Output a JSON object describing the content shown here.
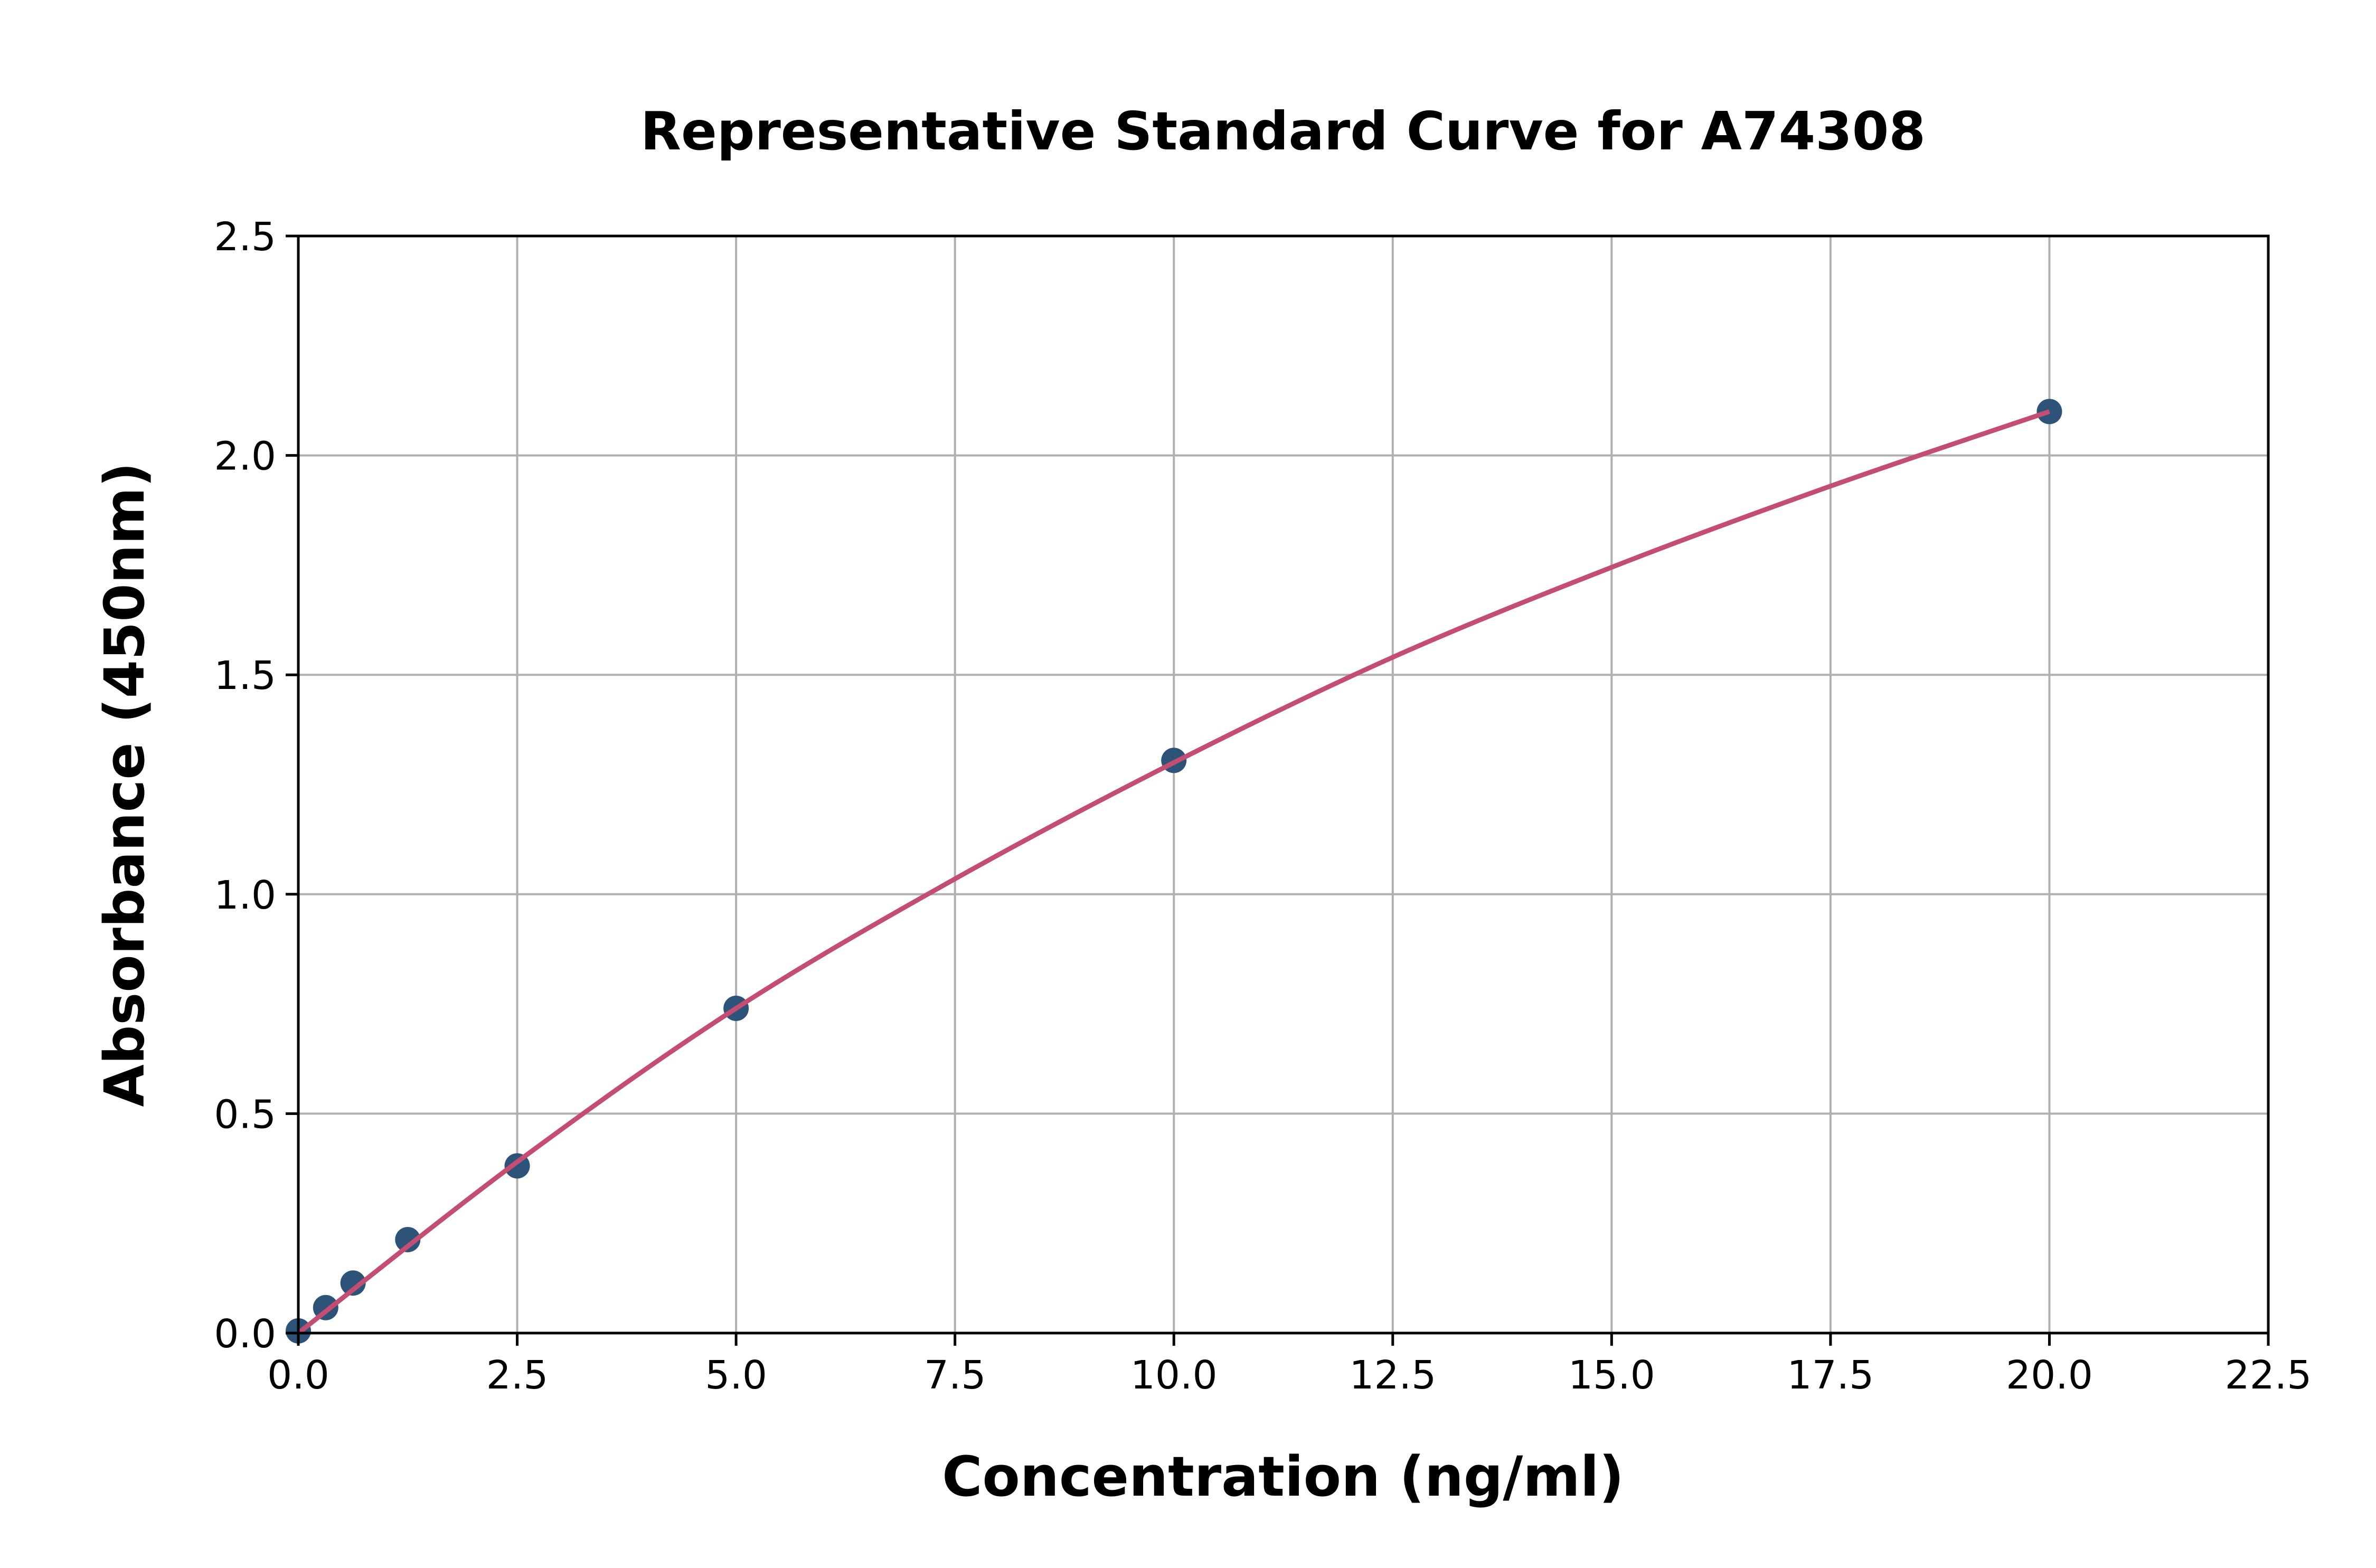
{
  "chart_data": {
    "type": "scatter",
    "title": "Representative Standard Curve for A74308",
    "xlabel": "Concentration (ng/ml)",
    "ylabel": "Absorbance (450nm)",
    "xlim": [
      0,
      22.5
    ],
    "ylim": [
      0,
      2.5
    ],
    "xticks": [
      "0.0",
      "2.5",
      "5.0",
      "7.5",
      "10.0",
      "12.5",
      "15.0",
      "17.5",
      "20.0",
      "22.5"
    ],
    "yticks": [
      "0.0",
      "0.5",
      "1.0",
      "1.5",
      "2.0",
      "2.5"
    ],
    "grid": true,
    "points": {
      "x": [
        0,
        0.3125,
        0.625,
        1.25,
        2.5,
        5,
        10,
        20
      ],
      "y": [
        0.005,
        0.058,
        0.114,
        0.213,
        0.381,
        0.74,
        1.305,
        2.1
      ]
    },
    "fit_curve": {
      "x": [
        0,
        2.5,
        5,
        7.5,
        10,
        12.5,
        15,
        17.5,
        20
      ],
      "y": [
        0,
        0.39,
        0.74,
        1.035,
        1.3,
        1.54,
        1.745,
        1.93,
        2.1
      ]
    },
    "colors": {
      "points": "#2e5379",
      "curve": "#c44d72",
      "grid": "#b0b0b0"
    }
  }
}
